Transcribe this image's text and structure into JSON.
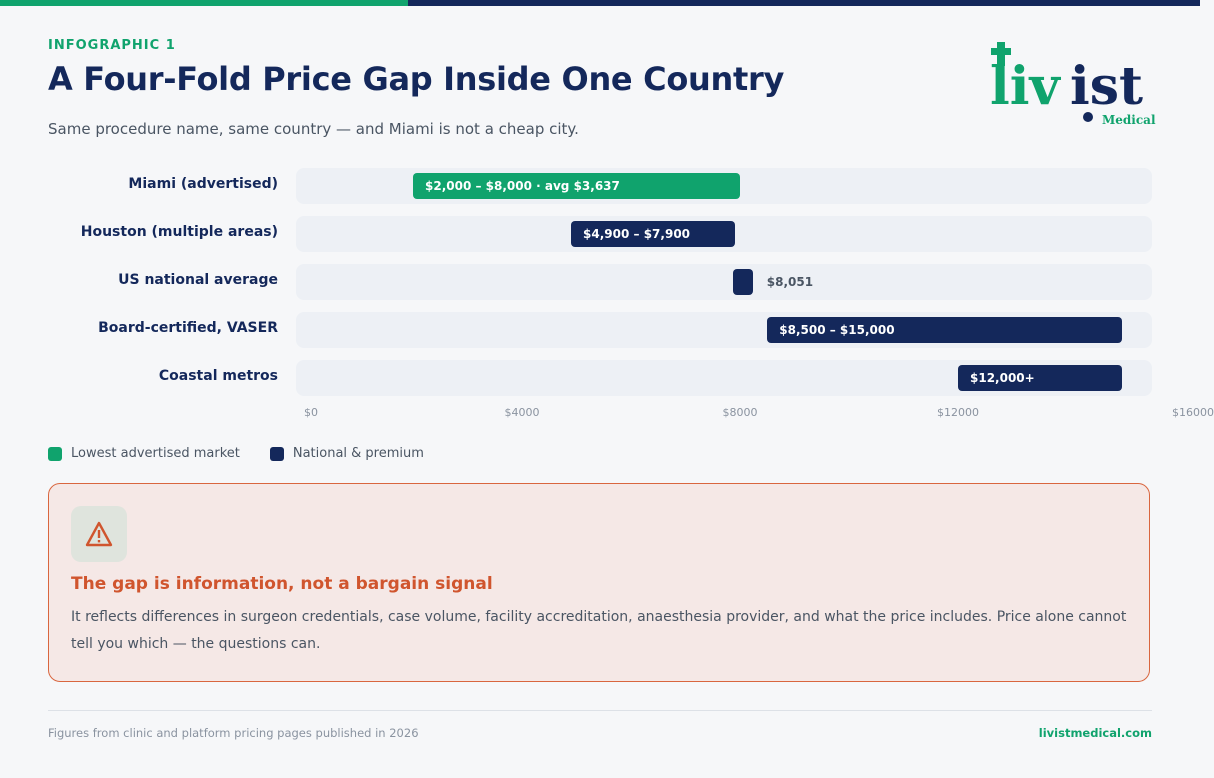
{
  "header": {
    "eyebrow": "INFOGRAPHIC 1",
    "title": "A Four-Fold Price Gap Inside One Country",
    "subtitle": "Same procedure name, same country — and Miami is not a cheap city."
  },
  "logo": {
    "wordmark": "livist",
    "tagline": "Medical"
  },
  "colors": {
    "green": "#10a36d",
    "navy": "#14285b",
    "track": "#edf0f5",
    "alert": "#d0552e"
  },
  "chart_data": {
    "type": "bar",
    "orientation": "horizontal-range",
    "xlim": [
      0,
      16000
    ],
    "ticks": [
      "$0",
      "$4000",
      "$8000",
      "$12000",
      "$16000"
    ],
    "tick_values": [
      0,
      4000,
      8000,
      12000,
      16000
    ],
    "categories": [
      "Miami (advertised)",
      "Houston (multiple areas)",
      "US national average",
      "Board-certified, VASER",
      "Coastal metros"
    ],
    "bars": [
      {
        "category": "Miami (advertised)",
        "start": 2000,
        "end": 8000,
        "label": "$2,000 – $8,000 · avg $3,637",
        "series": "Lowest advertised market"
      },
      {
        "category": "Houston (multiple areas)",
        "start": 4900,
        "end": 7900,
        "label": "$4,900 – $7,900",
        "series": "National & premium"
      },
      {
        "category": "US national average",
        "start": 8051,
        "end": 8051,
        "label": "$8,051",
        "series": "National & premium"
      },
      {
        "category": "Board-certified, VASER",
        "start": 8500,
        "end": 15000,
        "label": "$8,500 – $15,000",
        "series": "National & premium"
      },
      {
        "category": "Coastal metros",
        "start": 12000,
        "end": 15000,
        "label": "$12,000+",
        "series": "National & premium"
      }
    ],
    "legend": [
      {
        "name": "Lowest advertised market",
        "color": "#10a36d"
      },
      {
        "name": "National & premium",
        "color": "#14285b"
      }
    ]
  },
  "callout": {
    "icon": "warning-triangle-icon",
    "heading": "The gap is information, not a bargain signal",
    "body": "It reflects differences in surgeon credentials, case volume, facility accreditation, anaesthesia provider, and what the price includes. Price alone cannot tell you which — the questions can."
  },
  "footer": {
    "source": "Figures from clinic and platform pricing pages published in 2026",
    "site": "livistmedical.com"
  }
}
